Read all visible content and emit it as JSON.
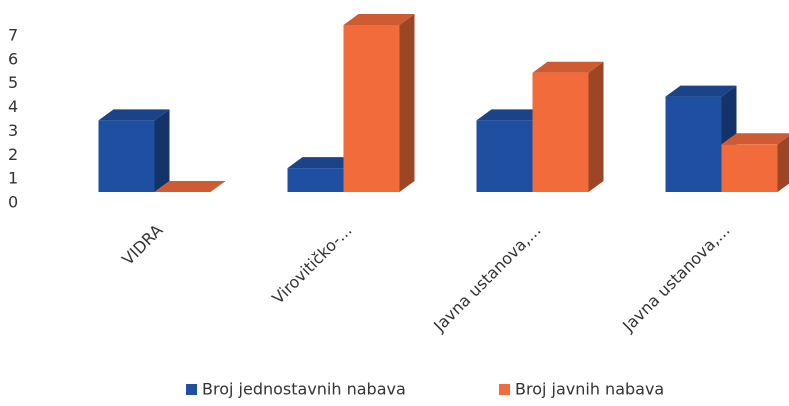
{
  "chart_data": {
    "type": "bar3d",
    "categories": [
      "VIDRA",
      "Virovitičko-...",
      "Javna ustanova,...",
      "Javna ustanova,..."
    ],
    "series": [
      {
        "name": "Broj jednostavnih nabava",
        "color": "#1f4fa0",
        "values": [
          3,
          1,
          3,
          4
        ]
      },
      {
        "name": "Broj javnih nabava",
        "color": "#f26b3a",
        "values": [
          0,
          7,
          5,
          2
        ]
      }
    ],
    "ylim": [
      0,
      7
    ],
    "yticks": [
      0,
      1,
      2,
      3,
      4,
      5,
      6,
      7
    ],
    "grid": false,
    "legend": "bottom"
  }
}
